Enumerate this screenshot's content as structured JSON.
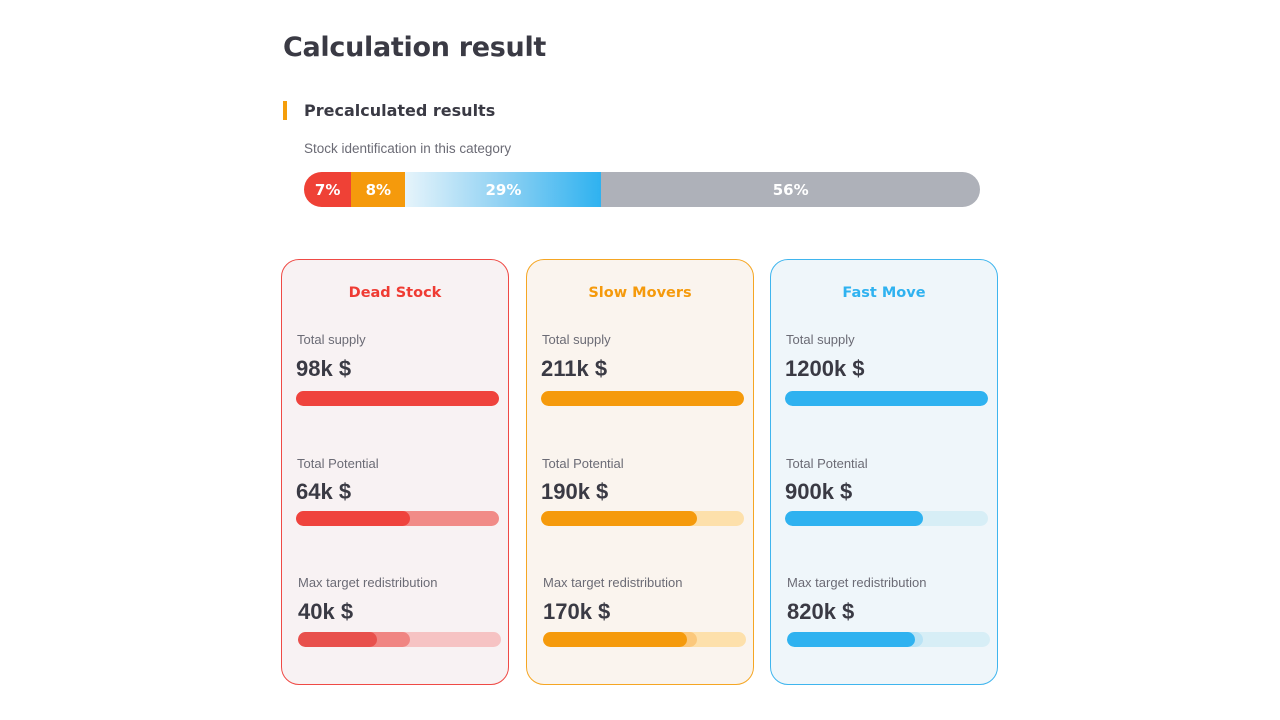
{
  "page": {
    "title": "Calculation result"
  },
  "section": {
    "title": "Precalculated results",
    "subtitle": "Stock identification in this category"
  },
  "distribution": [
    {
      "key": "dead",
      "label": "7%",
      "value": 7
    },
    {
      "key": "slow",
      "label": "8%",
      "value": 8
    },
    {
      "key": "fast",
      "label": "29%",
      "value": 29
    },
    {
      "key": "other",
      "label": "56%",
      "value": 56
    }
  ],
  "colors": {
    "dead": "#ef4136",
    "slow": "#f59a0c",
    "fast": "#2fb2f0",
    "other": "#aeb1b9",
    "accent": "#f59e0b"
  },
  "cards": [
    {
      "key": "dead",
      "title": "Dead Stock",
      "metrics": [
        {
          "label": "Total supply",
          "value": "98k $",
          "fill": 1.0
        },
        {
          "label": "Total Potential",
          "value": "64k $",
          "fill": 0.56
        },
        {
          "label": "Max target redistribution",
          "value": "40k $",
          "fill": 0.39,
          "fill_secondary": 0.55
        }
      ]
    },
    {
      "key": "slow",
      "title": "Slow Movers",
      "metrics": [
        {
          "label": "Total supply",
          "value": "211k $",
          "fill": 1.0
        },
        {
          "label": "Total Potential",
          "value": "190k $",
          "fill": 0.77
        },
        {
          "label": "Max target redistribution",
          "value": "170k $",
          "fill": 0.71,
          "fill_secondary": 0.76
        }
      ]
    },
    {
      "key": "fast",
      "title": "Fast Move",
      "metrics": [
        {
          "label": "Total supply",
          "value": "1200k $",
          "fill": 1.0
        },
        {
          "label": "Total Potential",
          "value": "900k $",
          "fill": 0.68
        },
        {
          "label": "Max target redistribution",
          "value": "820k $",
          "fill": 0.63,
          "fill_secondary": 0.67
        }
      ]
    }
  ]
}
